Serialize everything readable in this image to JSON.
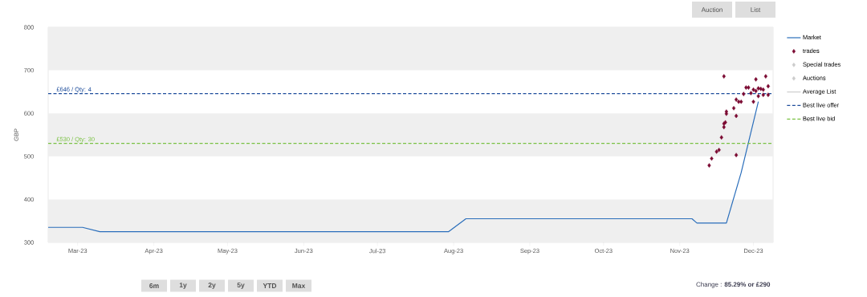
{
  "chart_data": {
    "type": "line",
    "ylabel": "GBP",
    "xlim": [
      "2023-02-17",
      "2023-12-09"
    ],
    "ylim": [
      300,
      800
    ],
    "xticks": [
      {
        "value": "2023-03-01",
        "label": "Mar-23"
      },
      {
        "value": "2023-04-01",
        "label": "Apr-23"
      },
      {
        "value": "2023-05-01",
        "label": "May-23"
      },
      {
        "value": "2023-06-01",
        "label": "Jun-23"
      },
      {
        "value": "2023-07-01",
        "label": "Jul-23"
      },
      {
        "value": "2023-08-01",
        "label": "Aug-23"
      },
      {
        "value": "2023-09-01",
        "label": "Sep-23"
      },
      {
        "value": "2023-10-01",
        "label": "Oct-23"
      },
      {
        "value": "2023-11-01",
        "label": "Nov-23"
      },
      {
        "value": "2023-12-01",
        "label": "Dec-23"
      }
    ],
    "yticks": [
      300,
      400,
      500,
      600,
      700,
      800
    ],
    "grid": false,
    "legend": "right",
    "bands": [
      {
        "axis": "y",
        "from": 300,
        "to": 400,
        "color": "#efefef"
      },
      {
        "axis": "y",
        "from": 500,
        "to": 600,
        "color": "#efefef"
      },
      {
        "axis": "y",
        "from": 700,
        "to": 800,
        "color": "#efefef"
      }
    ],
    "series": [
      {
        "name": "Market",
        "color": "#2a6ebb",
        "marker": "none",
        "line_style": "solid",
        "x": [
          "2023-02-17",
          "2023-03-03",
          "2023-03-10",
          "2023-07-30",
          "2023-08-06",
          "2023-11-06",
          "2023-11-08",
          "2023-11-20",
          "2023-11-26",
          "2023-12-03"
        ],
        "values": [
          335,
          335,
          325,
          325,
          355,
          355,
          345,
          345,
          462,
          627
        ]
      },
      {
        "name": "trades",
        "type": "scatter",
        "color": "#7b0a32",
        "marker": "diamond",
        "x": [
          "2023-11-13",
          "2023-11-14",
          "2023-11-16",
          "2023-11-17",
          "2023-11-18",
          "2023-11-19",
          "2023-11-19T14:00",
          "2023-11-19",
          "2023-11-20",
          "2023-11-20",
          "2023-11-19",
          "2023-11-24",
          "2023-11-23",
          "2023-11-24",
          "2023-11-24",
          "2023-11-25",
          "2023-11-26",
          "2023-11-27",
          "2023-11-28",
          "2023-11-29",
          "2023-11-30",
          "2023-12-01",
          "2023-12-01",
          "2023-12-02",
          "2023-12-02",
          "2023-12-03",
          "2023-12-03",
          "2023-12-04",
          "2023-12-05",
          "2023-12-05",
          "2023-12-06",
          "2023-12-07",
          "2023-12-07"
        ],
        "values": [
          479,
          495,
          511,
          515,
          544,
          576,
          579,
          568,
          599,
          604,
          686,
          503,
          612,
          594,
          632,
          627,
          627,
          645,
          660,
          660,
          647,
          655,
          627,
          679,
          652,
          640,
          658,
          657,
          655,
          643,
          686,
          663,
          643
        ]
      },
      {
        "name": "Special trades",
        "type": "scatter",
        "color": "#cccccc",
        "marker": "diamond"
      },
      {
        "name": "Auctions",
        "type": "scatter",
        "color": "#cccccc",
        "marker": "diamond"
      },
      {
        "name": "Average List",
        "color": "#cccccc",
        "marker": "none",
        "line_style": "solid"
      },
      {
        "name": "Best live offer",
        "color": "#1f4e9c",
        "marker": "none",
        "line_style": "dashed",
        "x": [
          "2023-02-17",
          "2023-12-09"
        ],
        "values": [
          646,
          646
        ]
      },
      {
        "name": "Best live bid",
        "color": "#7ac143",
        "marker": "none",
        "line_style": "dashed",
        "x": [
          "2023-02-17",
          "2023-12-09"
        ],
        "values": [
          530,
          530
        ]
      }
    ],
    "annotations": [
      {
        "text": "£646 / Qty: 4",
        "x": "2023-02-20",
        "y": 646
      },
      {
        "text": "£530 / Qty: 30",
        "x": "2023-02-20",
        "y": 530
      },
      "Auction",
      "List",
      "6m",
      "1y",
      "2y",
      "5y",
      "YTD",
      "Max",
      "Change : **85.29% or £290**"
    ]
  }
}
